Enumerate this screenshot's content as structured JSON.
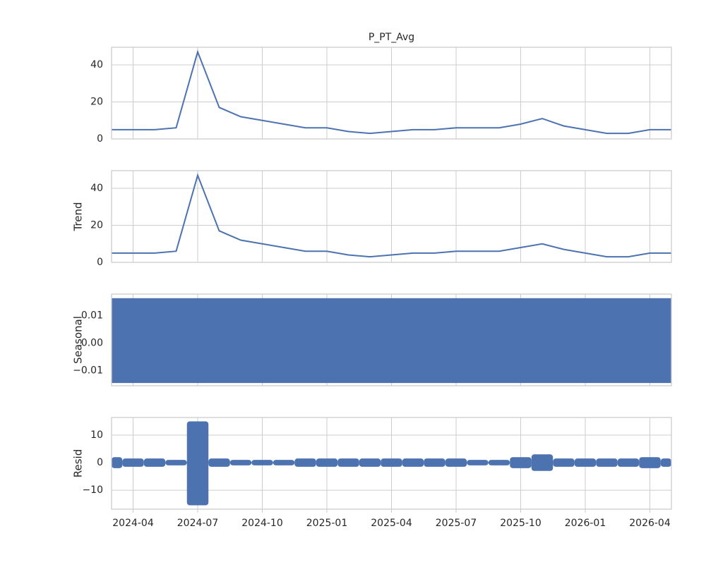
{
  "chart_data": [
    {
      "type": "line",
      "title": "P_PT_Avg",
      "color": "#4c72b0",
      "grid": true,
      "x": [
        "2024-03",
        "2024-04",
        "2024-05",
        "2024-06",
        "2024-07",
        "2024-08",
        "2024-09",
        "2024-10",
        "2024-11",
        "2024-12",
        "2025-01",
        "2025-02",
        "2025-03",
        "2025-04",
        "2025-05",
        "2025-06",
        "2025-07",
        "2025-08",
        "2025-09",
        "2025-10",
        "2025-11",
        "2025-12",
        "2026-01",
        "2026-02",
        "2026-03",
        "2026-04",
        "2026-05"
      ],
      "values": [
        5,
        5,
        5,
        6,
        47,
        17,
        12,
        10,
        8,
        6,
        6,
        4,
        3,
        4,
        5,
        5,
        6,
        6,
        6,
        8,
        11,
        7,
        5,
        3,
        3,
        5,
        5
      ],
      "xlim": [
        "2024-03",
        "2026-05"
      ],
      "ylim": [
        0,
        49.5
      ],
      "yticks": [
        0,
        20,
        40
      ]
    },
    {
      "type": "line",
      "ylabel": "Trend",
      "color": "#4c72b0",
      "grid": true,
      "x": [
        "2024-03",
        "2024-04",
        "2024-05",
        "2024-06",
        "2024-07",
        "2024-08",
        "2024-09",
        "2024-10",
        "2024-11",
        "2024-12",
        "2025-01",
        "2025-02",
        "2025-03",
        "2025-04",
        "2025-05",
        "2025-06",
        "2025-07",
        "2025-08",
        "2025-09",
        "2025-10",
        "2025-11",
        "2025-12",
        "2026-01",
        "2026-02",
        "2026-03",
        "2026-04",
        "2026-05"
      ],
      "values": [
        5,
        5,
        5,
        6,
        47,
        17,
        12,
        10,
        8,
        6,
        6,
        4,
        3,
        4,
        5,
        5,
        6,
        6,
        6,
        8,
        10,
        7,
        5,
        3,
        3,
        5,
        5
      ],
      "xlim": [
        "2024-03",
        "2026-05"
      ],
      "ylim": [
        0,
        49.5
      ],
      "yticks": [
        0,
        20,
        40
      ]
    },
    {
      "type": "band",
      "ylabel": "Seasonal",
      "color": "#4c72b0",
      "grid": true,
      "high": 0.0164,
      "low": -0.0146,
      "xlim": [
        "2024-03",
        "2026-05"
      ],
      "ylim": [
        -0.0156,
        0.0179
      ],
      "yticks": [
        {
          "value": -0.01,
          "label": "−0.01"
        },
        {
          "value": 0,
          "label": "0.00"
        },
        0.01
      ]
    },
    {
      "type": "range",
      "ylabel": "Resid",
      "color": "#4c72b0",
      "grid": true,
      "x": [
        "2024-03",
        "2024-04",
        "2024-05",
        "2024-06",
        "2024-07",
        "2024-08",
        "2024-09",
        "2024-10",
        "2024-11",
        "2024-12",
        "2025-01",
        "2025-02",
        "2025-03",
        "2025-04",
        "2025-05",
        "2025-06",
        "2025-07",
        "2025-08",
        "2025-09",
        "2025-10",
        "2025-11",
        "2025-12",
        "2026-01",
        "2026-02",
        "2026-03",
        "2026-04",
        "2026-05"
      ],
      "high": [
        2,
        1.5,
        1.5,
        1,
        15,
        1.5,
        1,
        1,
        1,
        1.5,
        1.5,
        1.5,
        1.5,
        1.5,
        1.5,
        1.5,
        1.5,
        1,
        1,
        2,
        3,
        1.5,
        1.5,
        1.5,
        1.5,
        2,
        1.5
      ],
      "low": [
        -2,
        -1.5,
        -1.5,
        -1,
        -15.5,
        -1.5,
        -1,
        -1,
        -1,
        -1.5,
        -1.5,
        -1.5,
        -1.5,
        -1.5,
        -1.5,
        -1.5,
        -1.5,
        -1,
        -1,
        -2,
        -3,
        -1.5,
        -1.5,
        -1.5,
        -1.5,
        -2,
        -1.5
      ],
      "xlim": [
        "2024-03",
        "2026-05"
      ],
      "ylim": [
        -16.9,
        16.4
      ],
      "yticks": [
        {
          "value": -10,
          "label": "−10"
        },
        0,
        10
      ],
      "xticks": [
        "2024-04",
        "2024-07",
        "2024-10",
        "2025-01",
        "2025-04",
        "2025-07",
        "2025-10",
        "2026-01",
        "2026-04"
      ]
    }
  ]
}
